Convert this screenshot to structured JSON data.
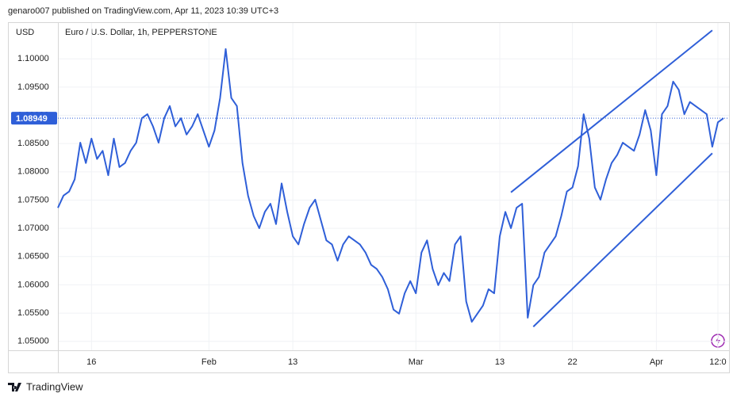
{
  "header": "genaro007 published on TradingView.com, Apr 11, 2023 10:39 UTC+3",
  "footer": "TradingView",
  "chart_data": {
    "type": "line",
    "title": "Euro / U.S. Dollar, 1h, PEPPERSTONE",
    "y_label": "USD",
    "color": "#2f5fd8",
    "categories": [
      null,
      null,
      null,
      null,
      null,
      null,
      "16",
      null,
      null,
      null,
      null,
      null,
      null,
      null,
      null,
      null,
      null,
      null,
      null,
      null,
      null,
      null,
      null,
      null,
      null,
      null,
      null,
      "Feb",
      null,
      null,
      null,
      null,
      null,
      null,
      null,
      null,
      null,
      null,
      null,
      null,
      null,
      null,
      "13",
      null,
      null,
      null,
      null,
      null,
      null,
      null,
      null,
      null,
      null,
      null,
      null,
      null,
      null,
      null,
      null,
      null,
      null,
      null,
      null,
      null,
      "Mar",
      null,
      null,
      null,
      null,
      null,
      null,
      null,
      null,
      null,
      null,
      null,
      null,
      null,
      null,
      "13",
      null,
      null,
      null,
      null,
      null,
      null,
      null,
      null,
      null,
      null,
      null,
      null,
      "22",
      null,
      null,
      null,
      null,
      null,
      null,
      null,
      null,
      null,
      null,
      null,
      null,
      null,
      null,
      "Apr",
      null,
      null,
      null,
      null,
      null,
      null,
      null,
      null,
      null,
      null,
      "12:0",
      null
    ],
    "values": [
      1.07363,
      1.07579,
      1.07651,
      1.07867,
      1.08516,
      1.08156,
      1.08588,
      1.08228,
      1.08372,
      1.07939,
      1.08588,
      1.08084,
      1.08156,
      1.08372,
      1.08516,
      1.08948,
      1.0902,
      1.08804,
      1.08516,
      1.08948,
      1.09164,
      1.08804,
      1.08948,
      1.0866,
      1.08804,
      1.0902,
      1.08732,
      1.08444,
      1.08732,
      1.09308,
      1.10173,
      1.09308,
      1.09164,
      1.08156,
      1.07579,
      1.07219,
      1.07003,
      1.07291,
      1.07435,
      1.07075,
      1.07795,
      1.07291,
      1.06859,
      1.06715,
      1.07075,
      1.07363,
      1.07507,
      1.07147,
      1.06787,
      1.06715,
      1.06427,
      1.06715,
      1.06859,
      1.06787,
      1.06715,
      1.06571,
      1.06354,
      1.06282,
      1.06138,
      1.05922,
      1.05562,
      1.0549,
      1.0585,
      1.06066,
      1.0585,
      1.06571,
      1.06787,
      1.06282,
      1.05994,
      1.0621,
      1.06066,
      1.06715,
      1.06859,
      1.05706,
      1.05346,
      1.0549,
      1.05634,
      1.05922,
      1.0585,
      1.06859,
      1.07291,
      1.07003,
      1.07363,
      1.07435,
      1.05418,
      1.05994,
      1.06138,
      1.06571,
      1.06715,
      1.06859,
      1.07219,
      1.07651,
      1.07723,
      1.081,
      1.0902,
      1.08588,
      1.07723,
      1.07507,
      1.07867,
      1.08156,
      1.083,
      1.08516,
      1.08444,
      1.08372,
      1.0866,
      1.09092,
      1.08732,
      1.07939,
      1.0902,
      1.09164,
      1.09597,
      1.09452,
      1.0902,
      1.09236,
      1.09164,
      1.09092,
      1.0902,
      1.08444,
      1.08876,
      1.08949
    ],
    "last_value": 1.08949,
    "trend_lines": [
      {
        "x": [
          81,
          117
        ],
        "y": [
          1.07637,
          1.10504
        ]
      },
      {
        "x": [
          85,
          117
        ],
        "y": [
          1.05259,
          1.08329
        ]
      }
    ],
    "ylim": [
      1.04842,
      1.10634
    ],
    "yticks": [
      {
        "value": 1.05,
        "label": "1.05000"
      },
      {
        "value": 1.055,
        "label": "1.05500"
      },
      {
        "value": 1.06,
        "label": "1.06000"
      },
      {
        "value": 1.065,
        "label": "1.06500"
      },
      {
        "value": 1.07,
        "label": "1.07000"
      },
      {
        "value": 1.075,
        "label": "1.07500"
      },
      {
        "value": 1.08,
        "label": "1.08000"
      },
      {
        "value": 1.085,
        "label": "1.08500"
      },
      {
        "value": 1.09,
        "label": "1.09000"
      },
      {
        "value": 1.095,
        "label": "1.09500"
      },
      {
        "value": 1.1,
        "label": "1.10000"
      }
    ],
    "grid": true
  }
}
